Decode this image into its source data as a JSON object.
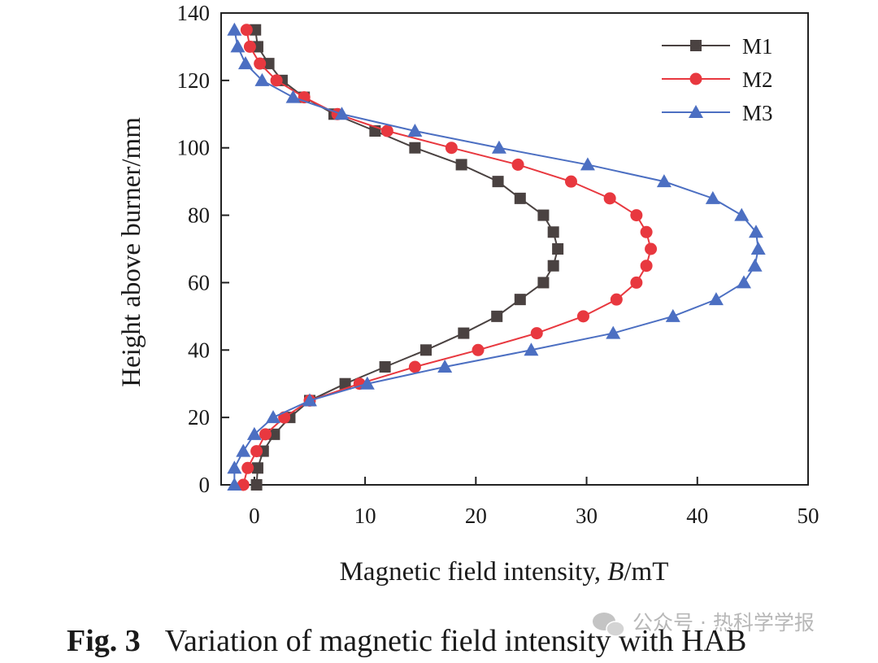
{
  "chart_data": {
    "type": "line",
    "xlabel": "Magnetic field intensity, ",
    "xlabel_italic": "B",
    "xlabel_unit": "/mT",
    "ylabel": "Height above burner/mm",
    "xlim": [
      -3,
      50
    ],
    "ylim": [
      0,
      140
    ],
    "xticks": [
      0,
      10,
      20,
      30,
      40,
      50
    ],
    "yticks": [
      0,
      20,
      40,
      60,
      80,
      100,
      120,
      140
    ],
    "legend_position": "top-right",
    "series": [
      {
        "name": "M1",
        "color": "#4a4241",
        "marker": "square",
        "points": [
          [
            0.2,
            0
          ],
          [
            0.3,
            5
          ],
          [
            0.8,
            10
          ],
          [
            1.8,
            15
          ],
          [
            3.2,
            20
          ],
          [
            5.0,
            25
          ],
          [
            8.2,
            30
          ],
          [
            11.8,
            35
          ],
          [
            15.5,
            40
          ],
          [
            18.9,
            45
          ],
          [
            21.9,
            50
          ],
          [
            24.0,
            55
          ],
          [
            26.1,
            60
          ],
          [
            27.0,
            65
          ],
          [
            27.4,
            70
          ],
          [
            27.0,
            75
          ],
          [
            26.1,
            80
          ],
          [
            24.0,
            85
          ],
          [
            22.0,
            90
          ],
          [
            18.7,
            95
          ],
          [
            14.5,
            100
          ],
          [
            10.9,
            105
          ],
          [
            7.2,
            110
          ],
          [
            4.5,
            115
          ],
          [
            2.5,
            120
          ],
          [
            1.3,
            125
          ],
          [
            0.3,
            130
          ],
          [
            0.1,
            135
          ]
        ]
      },
      {
        "name": "M2",
        "color": "#e8383f",
        "marker": "circle",
        "points": [
          [
            -1.0,
            0
          ],
          [
            -0.6,
            5
          ],
          [
            0.2,
            10
          ],
          [
            1.0,
            15
          ],
          [
            2.7,
            20
          ],
          [
            5.0,
            25
          ],
          [
            9.5,
            30
          ],
          [
            14.5,
            35
          ],
          [
            20.2,
            40
          ],
          [
            25.5,
            45
          ],
          [
            29.7,
            50
          ],
          [
            32.7,
            55
          ],
          [
            34.5,
            60
          ],
          [
            35.4,
            65
          ],
          [
            35.8,
            70
          ],
          [
            35.4,
            75
          ],
          [
            34.5,
            80
          ],
          [
            32.1,
            85
          ],
          [
            28.6,
            90
          ],
          [
            23.8,
            95
          ],
          [
            17.8,
            100
          ],
          [
            12.0,
            105
          ],
          [
            7.5,
            110
          ],
          [
            4.5,
            115
          ],
          [
            2.0,
            120
          ],
          [
            0.5,
            125
          ],
          [
            -0.4,
            130
          ],
          [
            -0.7,
            135
          ]
        ]
      },
      {
        "name": "M3",
        "color": "#4c6fc2",
        "marker": "triangle",
        "points": [
          [
            -1.8,
            0
          ],
          [
            -1.8,
            5
          ],
          [
            -1.0,
            10
          ],
          [
            0.0,
            15
          ],
          [
            1.7,
            20
          ],
          [
            5.0,
            25
          ],
          [
            10.2,
            30
          ],
          [
            17.2,
            35
          ],
          [
            25.0,
            40
          ],
          [
            32.4,
            45
          ],
          [
            37.8,
            50
          ],
          [
            41.7,
            55
          ],
          [
            44.2,
            60
          ],
          [
            45.2,
            65
          ],
          [
            45.5,
            70
          ],
          [
            45.3,
            75
          ],
          [
            44.0,
            80
          ],
          [
            41.4,
            85
          ],
          [
            37.0,
            90
          ],
          [
            30.1,
            95
          ],
          [
            22.1,
            100
          ],
          [
            14.5,
            105
          ],
          [
            7.9,
            110
          ],
          [
            3.5,
            115
          ],
          [
            0.7,
            120
          ],
          [
            -0.8,
            125
          ],
          [
            -1.5,
            130
          ],
          [
            -1.8,
            135
          ]
        ]
      }
    ]
  },
  "caption": {
    "label": "Fig. 3",
    "text": "Variation of magnetic field intensity with HAB"
  },
  "watermark": {
    "text": "公众号 · 热科学学报"
  }
}
